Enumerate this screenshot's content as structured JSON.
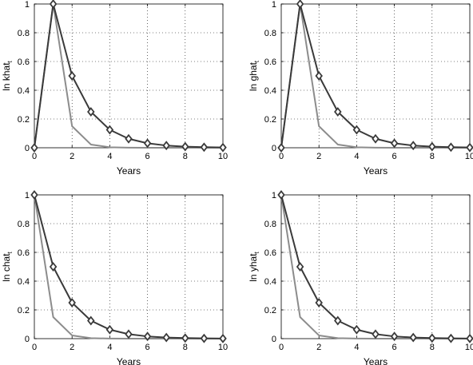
{
  "chart_data": [
    {
      "type": "line",
      "xlabel": "Years",
      "ylabel_main": "ln khat",
      "ylabel_sub": "t",
      "xlim": [
        0,
        10
      ],
      "ylim": [
        0,
        1
      ],
      "xticks": [
        0,
        2,
        4,
        6,
        8,
        10
      ],
      "yticks": [
        0,
        0.2,
        0.4,
        0.6,
        0.8,
        1
      ],
      "grid": true,
      "x": [
        0,
        1,
        2,
        3,
        4,
        5,
        6,
        7,
        8,
        9,
        10
      ],
      "series": [
        {
          "color": "#3a3a3a",
          "marker": "diamond",
          "values": [
            0,
            1,
            0.5,
            0.25,
            0.125,
            0.0625,
            0.03125,
            0.015625,
            0.0078,
            0.0039,
            0.002
          ]
        },
        {
          "color": "#8c8c8c",
          "marker": "none",
          "values": [
            0,
            1,
            0.15,
            0.0225,
            0.0034,
            0.0005,
            0.0001,
            0,
            0,
            0,
            0
          ]
        }
      ]
    },
    {
      "type": "line",
      "xlabel": "Years",
      "ylabel_main": "ln ghat",
      "ylabel_sub": "t",
      "xlim": [
        0,
        10
      ],
      "ylim": [
        0,
        1
      ],
      "xticks": [
        0,
        2,
        4,
        6,
        8,
        10
      ],
      "yticks": [
        0,
        0.2,
        0.4,
        0.6,
        0.8,
        1
      ],
      "grid": true,
      "x": [
        0,
        1,
        2,
        3,
        4,
        5,
        6,
        7,
        8,
        9,
        10
      ],
      "series": [
        {
          "color": "#3a3a3a",
          "marker": "diamond",
          "values": [
            0,
            1,
            0.5,
            0.25,
            0.125,
            0.0625,
            0.03125,
            0.015625,
            0.0078,
            0.0039,
            0.002
          ]
        },
        {
          "color": "#8c8c8c",
          "marker": "none",
          "values": [
            0,
            1,
            0.15,
            0.0225,
            0.0034,
            0.0005,
            0.0001,
            0,
            0,
            0,
            0
          ]
        }
      ]
    },
    {
      "type": "line",
      "xlabel": "Years",
      "ylabel_main": "ln chat",
      "ylabel_sub": "t",
      "xlim": [
        0,
        10
      ],
      "ylim": [
        0,
        1
      ],
      "xticks": [
        0,
        2,
        4,
        6,
        8,
        10
      ],
      "yticks": [
        0,
        0.2,
        0.4,
        0.6,
        0.8,
        1
      ],
      "grid": true,
      "x": [
        0,
        1,
        2,
        3,
        4,
        5,
        6,
        7,
        8,
        9,
        10
      ],
      "series": [
        {
          "color": "#3a3a3a",
          "marker": "diamond",
          "values": [
            1,
            0.5,
            0.25,
            0.125,
            0.0625,
            0.03125,
            0.015625,
            0.0078,
            0.0039,
            0.002,
            0.001
          ]
        },
        {
          "color": "#8c8c8c",
          "marker": "none",
          "values": [
            1,
            0.15,
            0.0225,
            0.0034,
            0.0005,
            0.0001,
            0,
            0,
            0,
            0,
            0
          ]
        }
      ]
    },
    {
      "type": "line",
      "xlabel": "Years",
      "ylabel_main": "ln yhat",
      "ylabel_sub": "t",
      "xlim": [
        0,
        10
      ],
      "ylim": [
        0,
        1
      ],
      "xticks": [
        0,
        2,
        4,
        6,
        8,
        10
      ],
      "yticks": [
        0,
        0.2,
        0.4,
        0.6,
        0.8,
        1
      ],
      "grid": true,
      "x": [
        0,
        1,
        2,
        3,
        4,
        5,
        6,
        7,
        8,
        9,
        10
      ],
      "series": [
        {
          "color": "#3a3a3a",
          "marker": "diamond",
          "values": [
            1,
            0.5,
            0.25,
            0.125,
            0.0625,
            0.03125,
            0.015625,
            0.0078,
            0.0039,
            0.002,
            0.001
          ]
        },
        {
          "color": "#8c8c8c",
          "marker": "none",
          "values": [
            1,
            0.15,
            0.0225,
            0.0034,
            0.0005,
            0.0001,
            0,
            0,
            0,
            0,
            0
          ]
        }
      ]
    }
  ]
}
